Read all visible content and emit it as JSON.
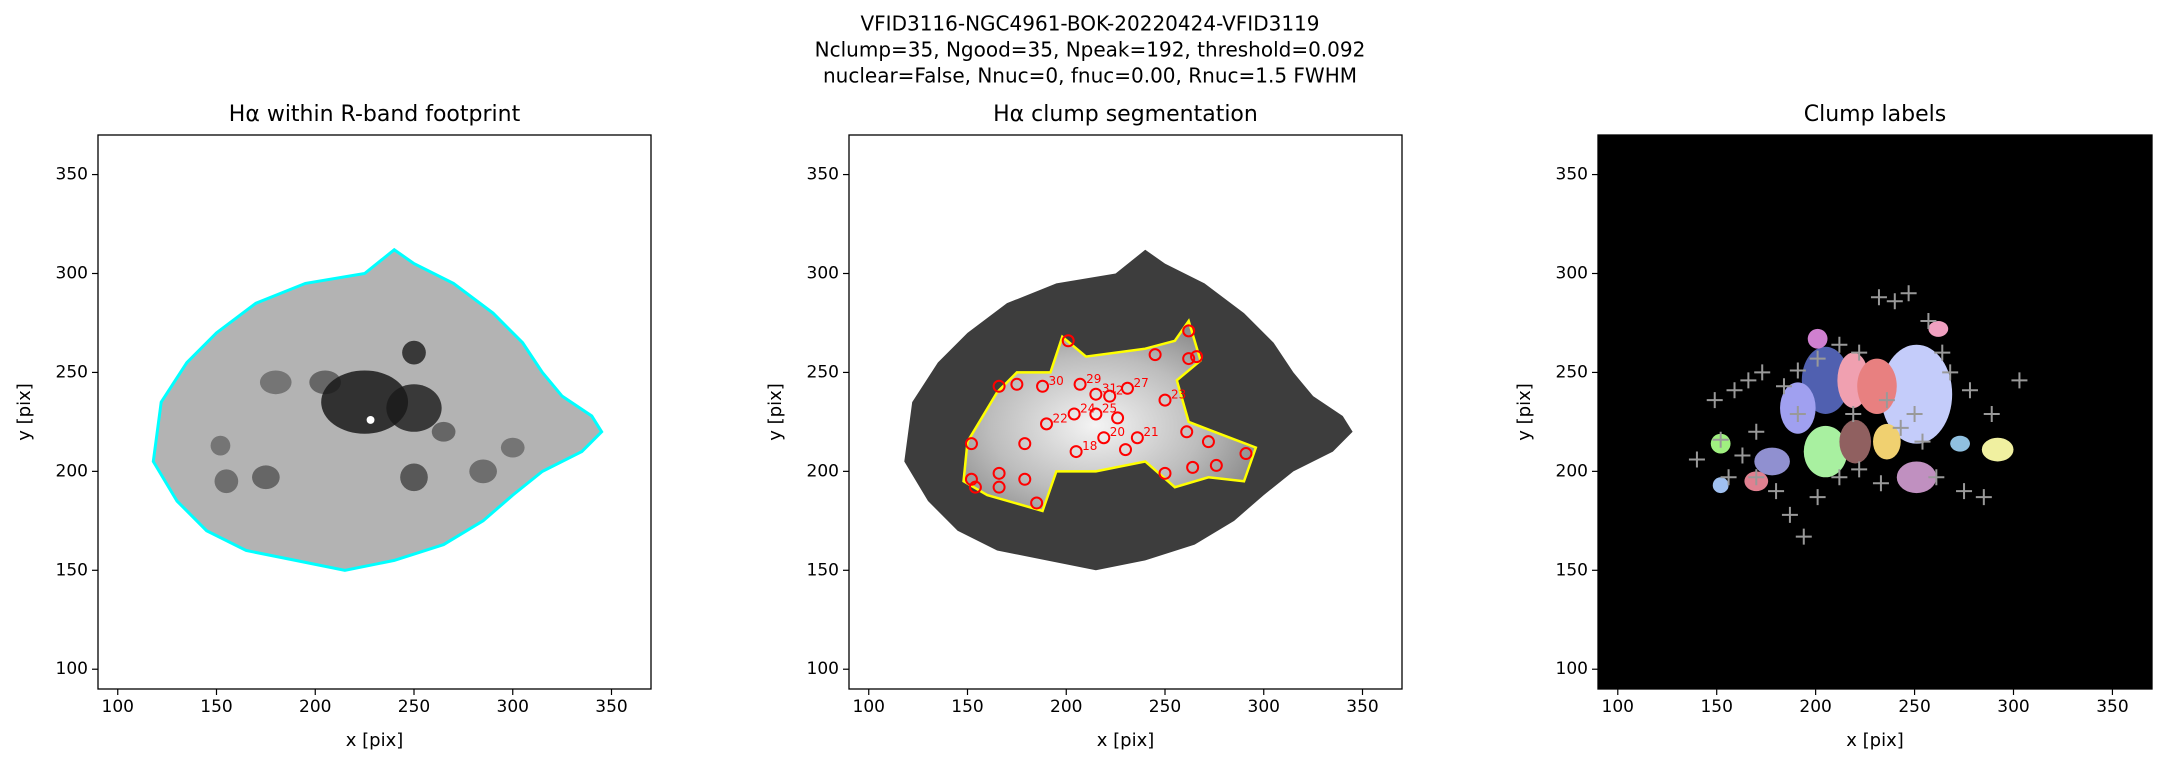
{
  "suptitle": [
    "VFID3116-NGC4961-BOK-20220424-VFID3119",
    "Nclump=35, Ngood=35, Npeak=192, threshold=0.092",
    "nuclear=False, Nnuc=0, fnuc=0.00, Rnuc=1.5 FWHM"
  ],
  "chart_data": [
    {
      "type": "image",
      "title": "Hα within R-band footprint",
      "xlabel": "x [pix]",
      "ylabel": "y [pix]",
      "xlim": [
        90,
        370
      ],
      "ylim": [
        90,
        370
      ],
      "xticks": [
        100,
        150,
        200,
        250,
        300,
        350
      ],
      "yticks": [
        100,
        150,
        200,
        250,
        300,
        350
      ],
      "contour_color": "#00ffff"
    },
    {
      "type": "image",
      "title": "Hα clump segmentation",
      "xlabel": "x [pix]",
      "ylabel": "y [pix]",
      "xlim": [
        90,
        370
      ],
      "ylim": [
        90,
        370
      ],
      "xticks": [
        100,
        150,
        200,
        250,
        300,
        350
      ],
      "yticks": [
        100,
        150,
        200,
        250,
        300,
        350
      ],
      "contour_color": "#ffff00",
      "clumps": {
        "color": "#ff0000",
        "x": [
          201,
          262,
          166,
          175,
          188,
          207,
          215,
          222,
          231,
          245,
          262,
          266,
          250,
          204,
          190,
          215,
          226,
          219,
          236,
          230,
          205,
          179,
          152,
          152,
          154,
          166,
          166,
          179,
          185,
          250,
          264,
          261,
          272,
          276,
          291
        ],
        "y": [
          266,
          271,
          243,
          244,
          243,
          244,
          239,
          238,
          242,
          259,
          257,
          258,
          236,
          229,
          224,
          229,
          227,
          217,
          217,
          211,
          210,
          214,
          214,
          196,
          192,
          199,
          192,
          196,
          184,
          199,
          202,
          220,
          215,
          203,
          209
        ],
        "labels": [
          null,
          null,
          null,
          null,
          "30",
          "29",
          "31",
          "2",
          "27",
          null,
          null,
          null,
          "23",
          "24",
          "22",
          "25",
          null,
          "20",
          "21",
          null,
          "18",
          null,
          null,
          null,
          null,
          null,
          null,
          null,
          null,
          null,
          null,
          null,
          null,
          null,
          null
        ]
      }
    },
    {
      "type": "image",
      "title": "Clump labels",
      "xlabel": "x [pix]",
      "ylabel": "y [pix]",
      "xlim": [
        90,
        370
      ],
      "ylim": [
        90,
        370
      ],
      "xticks": [
        100,
        150,
        200,
        250,
        300,
        350
      ],
      "yticks": [
        100,
        150,
        200,
        250,
        300,
        350
      ],
      "peaks": {
        "color": "#999999",
        "x": [
          149,
          159,
          166,
          173,
          184,
          191,
          201,
          212,
          222,
          232,
          240,
          247,
          257,
          264,
          268,
          278,
          289,
          303,
          152,
          163,
          170,
          180,
          187,
          194,
          201,
          212,
          222,
          233,
          243,
          254,
          261,
          275,
          285,
          156,
          140,
          170,
          191,
          219,
          236,
          250
        ],
        "y": [
          236,
          241,
          246,
          250,
          243,
          251,
          257,
          264,
          260,
          288,
          286,
          290,
          276,
          260,
          250,
          241,
          229,
          246,
          216,
          208,
          197,
          190,
          178,
          167,
          187,
          197,
          201,
          194,
          222,
          215,
          197,
          190,
          187,
          197,
          206,
          220,
          229,
          229,
          236,
          229
        ]
      }
    }
  ]
}
